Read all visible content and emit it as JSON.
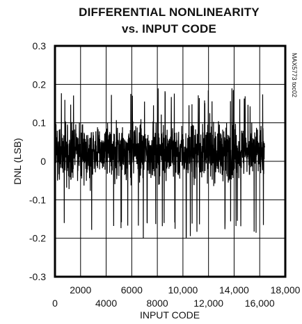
{
  "chart_data": {
    "type": "line",
    "title_line1": "DIFFERENTIAL NONLINEARITY",
    "title_line2": "vs. INPUT CODE",
    "xlabel": "INPUT CODE",
    "ylabel": "DNL (LSB)",
    "side_note": "MAX5773 toc02",
    "xlim": [
      0,
      18000
    ],
    "ylim": [
      -0.3,
      0.3
    ],
    "x_ticks_upper": [
      "2000",
      "6000",
      "10,000",
      "14,000",
      "18,000"
    ],
    "x_ticks_lower": [
      "0",
      "4000",
      "8000",
      "12,000",
      "16,000"
    ],
    "y_ticks": [
      "0.3",
      "0.2",
      "0.1",
      "0",
      "-0.1",
      "-0.2",
      "-0.3"
    ],
    "grid": true,
    "series": [
      {
        "x_range": [
          0,
          16383
        ],
        "band_upper": 0.15,
        "band_lower": -0.1,
        "max": 0.19,
        "min": -0.2
      }
    ]
  }
}
